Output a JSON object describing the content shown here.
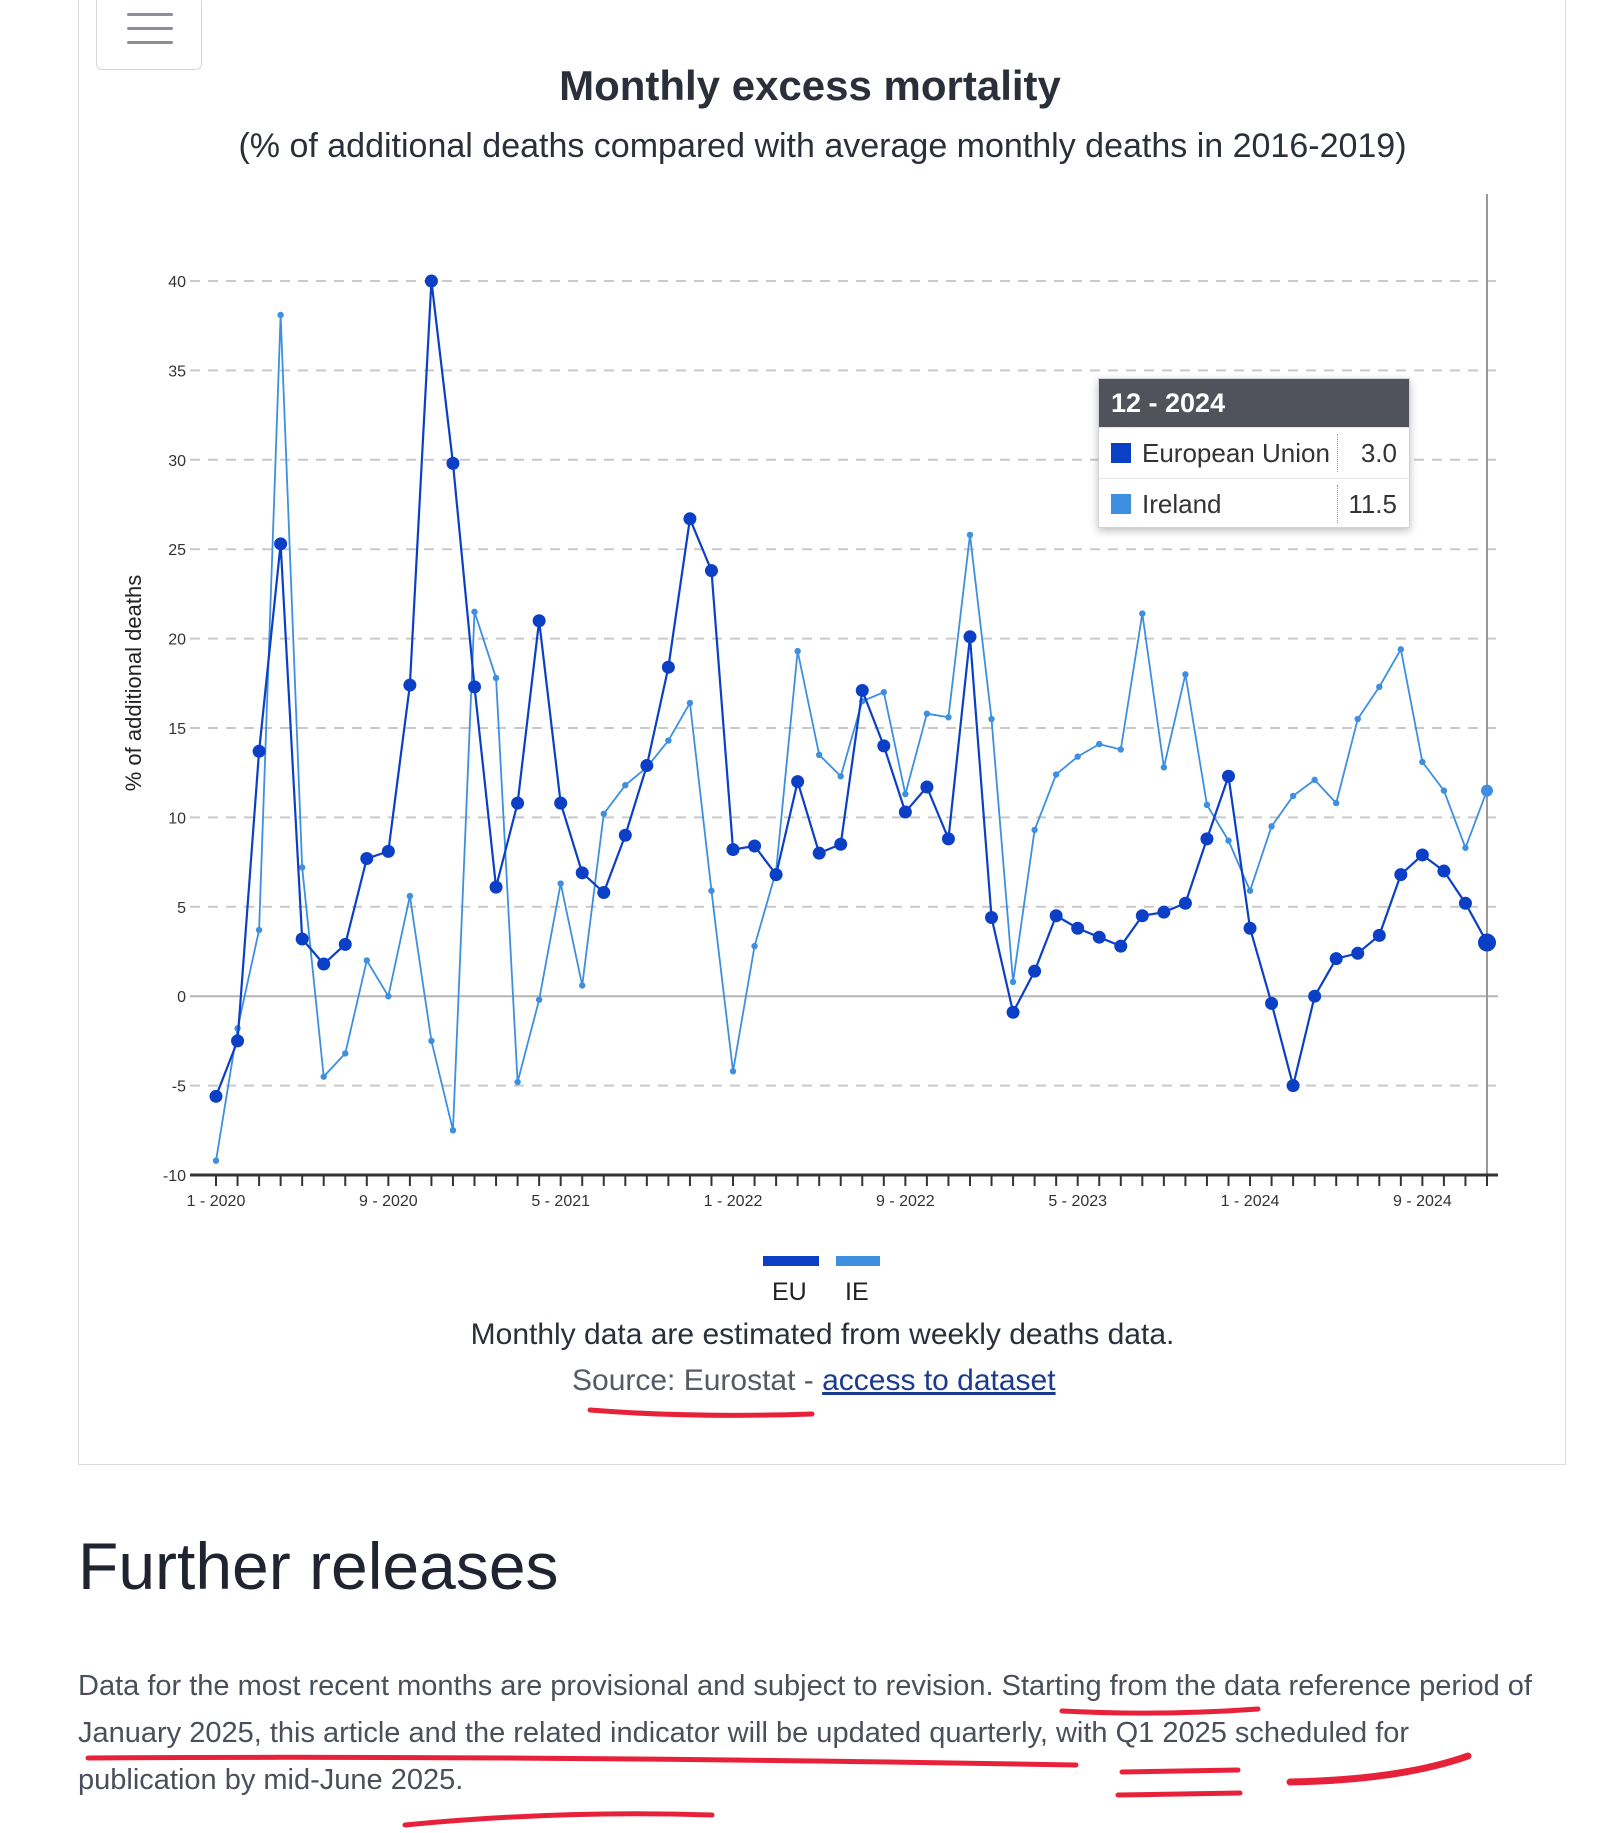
{
  "menu": {
    "icon": "hamburger-menu-icon"
  },
  "chart_data": {
    "type": "line",
    "title": "Monthly excess mortality",
    "subtitle": "(% of additional deaths compared with average monthly deaths in 2016-2019)",
    "xlabel": "",
    "ylabel": "% of additional deaths",
    "ylim": [
      -10,
      40
    ],
    "yticks": [
      -10,
      -5,
      0,
      5,
      10,
      15,
      20,
      25,
      30,
      35,
      40
    ],
    "grid": "dashed horizontal",
    "x": [
      "1 - 2020",
      "2 - 2020",
      "3 - 2020",
      "4 - 2020",
      "5 - 2020",
      "6 - 2020",
      "7 - 2020",
      "8 - 2020",
      "9 - 2020",
      "10 - 2020",
      "11 - 2020",
      "12 - 2020",
      "1 - 2021",
      "2 - 2021",
      "3 - 2021",
      "4 - 2021",
      "5 - 2021",
      "6 - 2021",
      "7 - 2021",
      "8 - 2021",
      "9 - 2021",
      "10 - 2021",
      "11 - 2021",
      "12 - 2021",
      "1 - 2022",
      "2 - 2022",
      "3 - 2022",
      "4 - 2022",
      "5 - 2022",
      "6 - 2022",
      "7 - 2022",
      "8 - 2022",
      "9 - 2022",
      "10 - 2022",
      "11 - 2022",
      "12 - 2022",
      "1 - 2023",
      "2 - 2023",
      "3 - 2023",
      "4 - 2023",
      "5 - 2023",
      "6 - 2023",
      "7 - 2023",
      "8 - 2023",
      "9 - 2023",
      "10 - 2023",
      "11 - 2023",
      "12 - 2023",
      "1 - 2024",
      "2 - 2024",
      "3 - 2024",
      "4 - 2024",
      "5 - 2024",
      "6 - 2024",
      "7 - 2024",
      "8 - 2024",
      "9 - 2024",
      "10 - 2024",
      "11 - 2024",
      "12 - 2024"
    ],
    "xticklabels": [
      "1 - 2020",
      "9 - 2020",
      "5 - 2021",
      "1 - 2022",
      "9 - 2022",
      "5 - 2023",
      "1 - 2024",
      "9 - 2024"
    ],
    "series": [
      {
        "name": "EU",
        "color": "#0b3fc6",
        "values": [
          -5.6,
          -2.5,
          13.7,
          25.3,
          3.2,
          1.8,
          2.9,
          7.7,
          8.1,
          17.4,
          40.0,
          29.8,
          17.3,
          6.1,
          10.8,
          21.0,
          10.8,
          6.9,
          5.8,
          9.0,
          12.9,
          18.4,
          26.7,
          23.8,
          8.2,
          8.4,
          6.8,
          12.0,
          8.0,
          8.5,
          17.1,
          14.0,
          10.3,
          11.7,
          8.8,
          20.1,
          4.4,
          -0.9,
          1.4,
          4.5,
          3.8,
          3.3,
          2.8,
          4.5,
          4.7,
          5.2,
          8.8,
          12.3,
          3.8,
          -0.4,
          -5.0,
          0.0,
          2.1,
          2.4,
          3.4,
          6.8,
          7.9,
          7.0,
          5.2,
          3.0
        ]
      },
      {
        "name": "IE",
        "color": "#3e8fe0",
        "values": [
          -9.2,
          -1.8,
          3.7,
          38.1,
          7.2,
          -4.5,
          -3.2,
          2.0,
          0.0,
          5.6,
          -2.5,
          -7.5,
          21.5,
          17.8,
          -4.8,
          -0.2,
          6.3,
          0.6,
          10.2,
          11.8,
          12.8,
          14.3,
          16.4,
          5.9,
          -4.2,
          2.8,
          7.0,
          19.3,
          13.5,
          12.3,
          16.5,
          17.0,
          11.3,
          15.8,
          15.6,
          25.8,
          15.5,
          0.8,
          9.3,
          12.4,
          13.4,
          14.1,
          13.8,
          21.4,
          12.8,
          18.0,
          10.7,
          8.7,
          5.9,
          9.5,
          11.2,
          12.1,
          10.8,
          15.5,
          17.3,
          19.4,
          13.1,
          11.5,
          8.3,
          11.5
        ]
      }
    ],
    "legend": [
      {
        "label": "EU",
        "color": "#0b3fc6"
      },
      {
        "label": "IE",
        "color": "#3e8fe0"
      }
    ],
    "legend_placement": "bottom-center",
    "tooltip": {
      "title": "12 - 2024",
      "rows": [
        {
          "label": "European Union",
          "value": "3.0",
          "color": "#0b3fc6"
        },
        {
          "label": "Ireland",
          "value": "11.5",
          "color": "#3e8fe0"
        }
      ]
    }
  },
  "note": "Monthly data are estimated from weekly deaths data.",
  "source": {
    "prefix": "Source: Eurostat - ",
    "link": "access to dataset"
  },
  "section": {
    "heading": "Further releases",
    "paragraph": "Data for the most recent months are provisional and subject to revision. Starting from the data reference period of January 2025, this article and the related indicator will be updated quarterly, with Q1 2025 scheduled for publication by mid-June 2025."
  }
}
